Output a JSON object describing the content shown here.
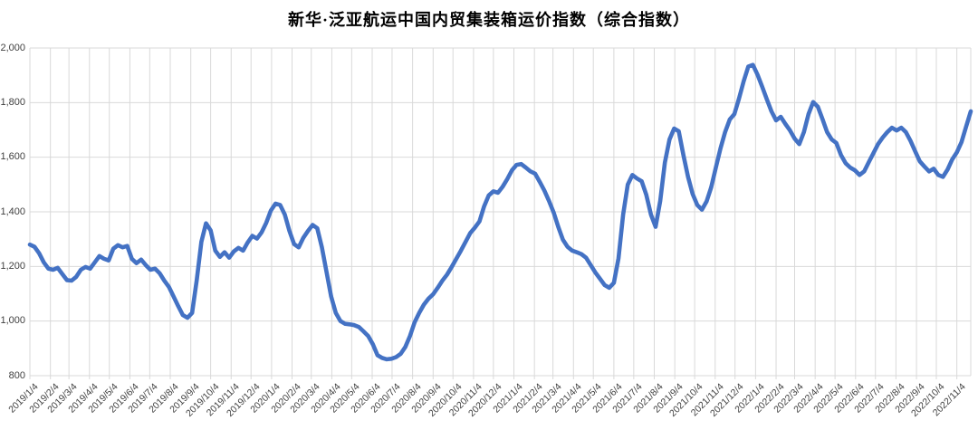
{
  "title": "新华·泛亚航运中国内贸集装箱运价指数（综合指数）",
  "colors": {
    "line": "#4472C4",
    "grid": "#D9D9D9",
    "axis_text": "#404040",
    "title_text": "#000000",
    "background": "#FFFFFF"
  },
  "chart_data": {
    "type": "line",
    "title": "新华·泛亚航运中国内贸集装箱运价指数（综合指数）",
    "xlabel": "",
    "ylabel": "",
    "ylim": [
      800,
      2000
    ],
    "grid": true,
    "legend": "none",
    "y_tick_values": [
      2000,
      1800,
      1600,
      1400,
      1200,
      1000,
      800
    ],
    "y_tick_labels": [
      "2,000",
      "1,800",
      "1,600",
      "1,400",
      "1,200",
      "1,000",
      "800"
    ],
    "x_tick_labels": [
      "2019/1/4",
      "2019/2/4",
      "2019/3/4",
      "2019/4/4",
      "2019/5/4",
      "2019/6/4",
      "2019/7/4",
      "2019/8/4",
      "2019/9/4",
      "2019/10/4",
      "2019/11/4",
      "2019/12/4",
      "2020/1/4",
      "2020/2/4",
      "2020/3/4",
      "2020/4/4",
      "2020/5/4",
      "2020/6/4",
      "2020/7/4",
      "2020/8/4",
      "2020/9/4",
      "2020/10/4",
      "2020/11/4",
      "2020/12/4",
      "2021/1/4",
      "2021/2/4",
      "2021/3/4",
      "2021/4/4",
      "2021/5/4",
      "2021/6/4",
      "2021/7/4",
      "2021/8/4",
      "2021/9/4",
      "2021/10/4",
      "2021/11/4",
      "2021/12/4",
      "2022/1/4",
      "2022/2/4",
      "2022/3/4",
      "2022/4/4",
      "2022/5/4",
      "2022/6/4",
      "2022/7/4",
      "2022/8/4",
      "2022/9/4",
      "2022/10/4",
      "2022/11/4"
    ],
    "x_start": "2019/1/4",
    "x_interval_days": 7,
    "series": [
      {
        "name": "综合指数",
        "values": [
          1280,
          1272,
          1248,
          1215,
          1192,
          1188,
          1195,
          1172,
          1150,
          1148,
          1162,
          1188,
          1198,
          1192,
          1215,
          1238,
          1228,
          1222,
          1265,
          1278,
          1270,
          1275,
          1228,
          1212,
          1225,
          1205,
          1188,
          1192,
          1175,
          1148,
          1125,
          1090,
          1055,
          1022,
          1012,
          1030,
          1150,
          1290,
          1358,
          1332,
          1258,
          1235,
          1252,
          1232,
          1255,
          1268,
          1258,
          1288,
          1312,
          1302,
          1325,
          1360,
          1405,
          1430,
          1425,
          1390,
          1330,
          1282,
          1270,
          1305,
          1330,
          1352,
          1340,
          1270,
          1180,
          1090,
          1030,
          1000,
          990,
          988,
          985,
          978,
          962,
          945,
          915,
          875,
          865,
          860,
          862,
          868,
          880,
          905,
          945,
          995,
          1030,
          1060,
          1082,
          1098,
          1122,
          1148,
          1170,
          1198,
          1228,
          1258,
          1290,
          1322,
          1342,
          1365,
          1420,
          1460,
          1475,
          1470,
          1492,
          1520,
          1552,
          1572,
          1575,
          1562,
          1548,
          1540,
          1510,
          1478,
          1440,
          1398,
          1345,
          1298,
          1272,
          1258,
          1252,
          1245,
          1232,
          1205,
          1178,
          1155,
          1132,
          1122,
          1140,
          1230,
          1390,
          1500,
          1535,
          1522,
          1512,
          1462,
          1390,
          1345,
          1440,
          1580,
          1665,
          1705,
          1695,
          1608,
          1528,
          1465,
          1425,
          1408,
          1438,
          1490,
          1562,
          1632,
          1692,
          1738,
          1758,
          1815,
          1878,
          1932,
          1938,
          1902,
          1858,
          1812,
          1768,
          1735,
          1748,
          1722,
          1698,
          1668,
          1648,
          1692,
          1758,
          1802,
          1785,
          1740,
          1692,
          1665,
          1652,
          1608,
          1578,
          1562,
          1552,
          1535,
          1548,
          1582,
          1615,
          1648,
          1672,
          1692,
          1708,
          1698,
          1708,
          1692,
          1660,
          1622,
          1585,
          1566,
          1548,
          1558,
          1535,
          1528,
          1555,
          1592,
          1618,
          1655,
          1712,
          1768
        ]
      }
    ]
  }
}
